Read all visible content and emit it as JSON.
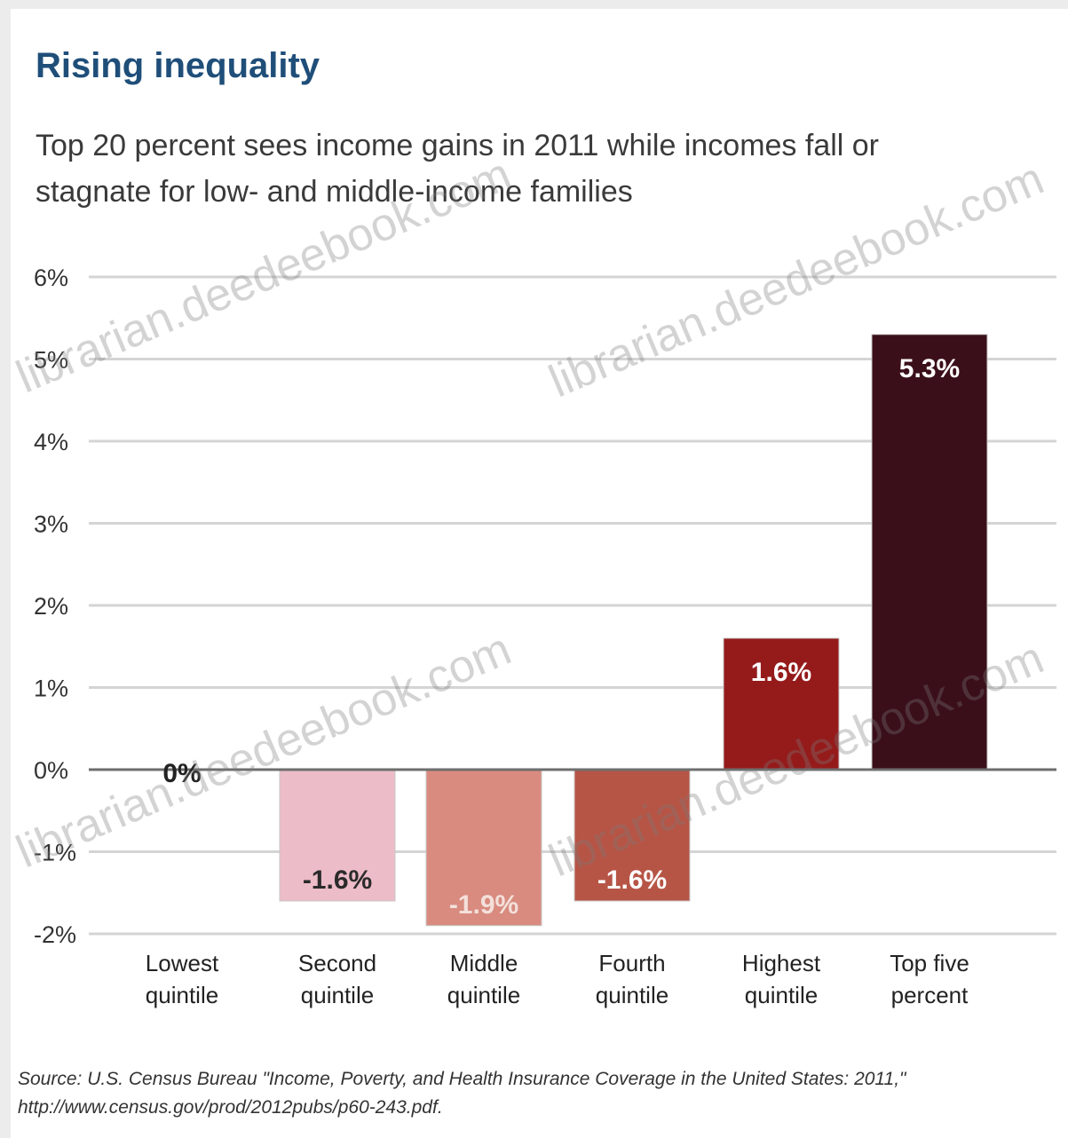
{
  "title": "Rising inequality",
  "subtitle": "Top 20 percent sees income gains in 2011 while incomes fall or stagnate for low- and middle-income families",
  "source": "Source: U.S. Census Bureau \"Income, Poverty, and Health Insurance Coverage in the United States: 2011,\" http://www.census.gov/prod/2012pubs/p60-243.pdf.",
  "watermark_text": "librarian.deedeebook.com",
  "chart_data": {
    "type": "bar",
    "title": "Rising inequality",
    "subtitle": "Top 20 percent sees income gains in 2011 while incomes fall or stagnate for low- and middle-income families",
    "categories": [
      [
        "Lowest",
        "quintile"
      ],
      [
        "Second",
        "quintile"
      ],
      [
        "Middle",
        "quintile"
      ],
      [
        "Fourth",
        "quintile"
      ],
      [
        "Highest",
        "quintile"
      ],
      [
        "Top five",
        "percent"
      ]
    ],
    "values": [
      0,
      -1.6,
      -1.9,
      -1.6,
      1.6,
      5.3
    ],
    "data_labels": [
      "0%",
      "-1.6%",
      "-1.9%",
      "-1.6%",
      "1.6%",
      "5.3%"
    ],
    "bar_colors": [
      "#ffffff",
      "#ecbcc8",
      "#d98b80",
      "#b65546",
      "#951b1b",
      "#3b0f1a"
    ],
    "label_colors": [
      "#222222",
      "#2a2a2a",
      "#f3e0da",
      "#ffffff",
      "#ffffff",
      "#ffffff"
    ],
    "ylim": [
      -2,
      6
    ],
    "yticks": [
      6,
      5,
      4,
      3,
      2,
      1,
      0,
      -1,
      -2
    ],
    "ytick_labels": [
      "6%",
      "5%",
      "4%",
      "3%",
      "2%",
      "1%",
      "0%",
      "-1%",
      "-2%"
    ],
    "xlabel": "",
    "ylabel": "",
    "grid": true
  }
}
